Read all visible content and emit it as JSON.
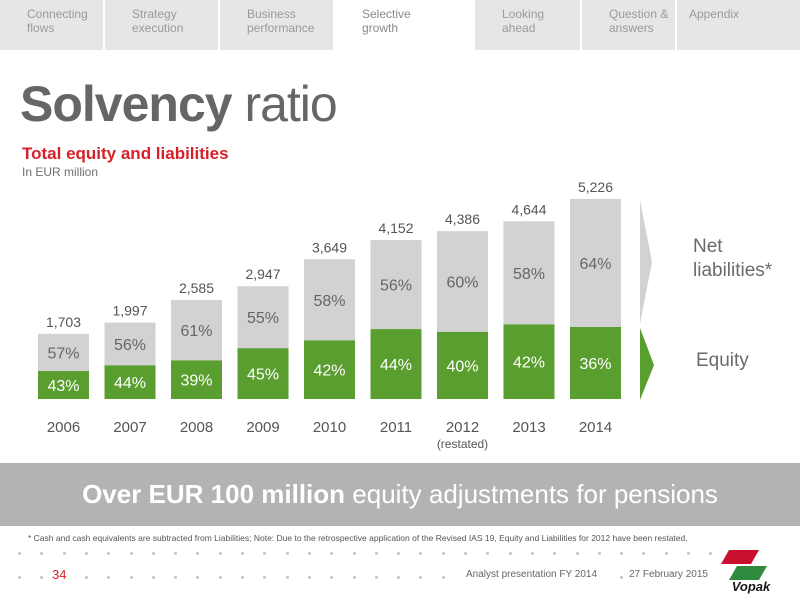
{
  "nav": {
    "tabs": [
      {
        "label": "Connecting\nflows",
        "active": false
      },
      {
        "label": "Strategy\nexecution",
        "active": false
      },
      {
        "label": "Business\nperformance",
        "active": false
      },
      {
        "label": "Selective\ngrowth",
        "active": true
      },
      {
        "label": "Looking\nahead",
        "active": false
      },
      {
        "label": "Question &\nanswers",
        "active": false
      },
      {
        "label": "Appendix",
        "active": false
      }
    ]
  },
  "slide": {
    "title_bold": "Solvency",
    "title_rest": " ratio",
    "subtitle": "Total equity and liabilities",
    "unit": "In EUR million"
  },
  "chart_data": {
    "type": "bar",
    "stacked": true,
    "categories": [
      "2006",
      "2007",
      "2008",
      "2009",
      "2010",
      "2011",
      "2012",
      "2013",
      "2014"
    ],
    "category_notes": [
      "",
      "",
      "",
      "",
      "",
      "",
      "(restated)",
      "",
      ""
    ],
    "totals": [
      1703,
      1997,
      2585,
      2947,
      3649,
      4152,
      4386,
      4644,
      5226
    ],
    "total_labels": [
      "1,703",
      "1,997",
      "2,585",
      "2,947",
      "3,649",
      "4,152",
      "4,386",
      "4,644",
      "5,226"
    ],
    "series": [
      {
        "name": "Equity",
        "percent": [
          43,
          44,
          39,
          45,
          42,
          44,
          40,
          42,
          36
        ],
        "labels": [
          "43%",
          "44%",
          "39%",
          "45%",
          "42%",
          "44%",
          "40%",
          "42%",
          "36%"
        ],
        "color": "#5a9e2f"
      },
      {
        "name": "Net liabilities*",
        "percent": [
          57,
          56,
          61,
          55,
          58,
          56,
          60,
          58,
          64
        ],
        "labels": [
          "57%",
          "56%",
          "61%",
          "55%",
          "58%",
          "56%",
          "60%",
          "58%",
          "64%"
        ],
        "color": "#d2d2d2"
      }
    ],
    "legend": {
      "net_liabilities": "Net\nliabilities*",
      "equity": "Equity"
    },
    "arrow_color_gray": "#d2d2d2",
    "arrow_color_green": "#5a9e2f"
  },
  "banner": {
    "bold": "Over EUR 100 million",
    "rest": " equity adjustments for pensions"
  },
  "footnote": "* Cash and cash equivalents are subtracted from Liabilities; Note: Due to the retrospective application of the Revised IAS 19, Equity and Liabilities for 2012 have been restated.",
  "footer": {
    "page_number": "34",
    "presentation": "Analyst presentation FY 2014",
    "date": "27 February 2015",
    "logo_text": "Vopak"
  },
  "colors": {
    "accent_red": "#d8202a",
    "banner_gray": "#b3b3b3",
    "logo_red": "#c8102e",
    "logo_green": "#2e8b3e"
  }
}
